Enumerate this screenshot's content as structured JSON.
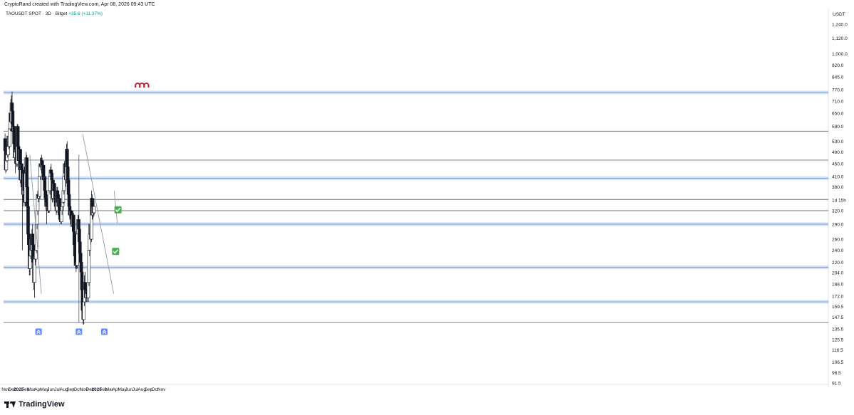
{
  "header": {
    "attribution": "CryptoRand created with TradingView.com, Apr 08, 2026 09:43 UTC"
  },
  "legend": {
    "symbol": "TAOUSDT SPOT · 3D · Bitget",
    "change": "+35.6 (+11.37%)"
  },
  "brand": {
    "name": "TradingView",
    "icon": "tradingview-logo-icon"
  },
  "chart_data": {
    "type": "candlestick",
    "y_scale": "log",
    "ylim": [
      91.5,
      1240.0
    ],
    "y_axis_unit": "USDT",
    "y_ticks": [
      "1,240.0",
      "1,120.0",
      "1,000.0",
      "920.0",
      "845.0",
      "770.0",
      "710.0",
      "650.0",
      "590.0",
      "530.0",
      "490.0",
      "450.0",
      "410.0",
      "380.0",
      "320.0",
      "290.0",
      "260.0",
      "240.0",
      "220.0",
      "204.0",
      "188.0",
      "172.0",
      "159.5",
      "147.5",
      "135.5",
      "125.5",
      "116.5",
      "106.5",
      "98.5",
      "91.5"
    ],
    "price_badge": "1d 15h",
    "x_ticks": [
      {
        "label": "Nov",
        "date": "2024-11-01",
        "bold": false
      },
      {
        "label": "Dec",
        "date": "2024-12-01",
        "bold": false
      },
      {
        "label": "2025",
        "date": "2025-01-01",
        "bold": true
      },
      {
        "label": "Feb",
        "date": "2025-02-01",
        "bold": false
      },
      {
        "label": "Mar",
        "date": "2025-03-01",
        "bold": false
      },
      {
        "label": "Apr",
        "date": "2025-04-01",
        "bold": false
      },
      {
        "label": "May",
        "date": "2025-05-01",
        "bold": false
      },
      {
        "label": "Jun",
        "date": "2025-06-01",
        "bold": false
      },
      {
        "label": "Jul",
        "date": "2025-07-01",
        "bold": false
      },
      {
        "label": "Aug",
        "date": "2025-08-01",
        "bold": false
      },
      {
        "label": "Sep",
        "date": "2025-09-01",
        "bold": false
      },
      {
        "label": "Oct",
        "date": "2025-10-01",
        "bold": false
      },
      {
        "label": "Nov",
        "date": "2025-11-01",
        "bold": false
      },
      {
        "label": "Dec",
        "date": "2025-12-01",
        "bold": false
      },
      {
        "label": "2026",
        "date": "2026-01-01",
        "bold": true
      },
      {
        "label": "Feb",
        "date": "2026-02-01",
        "bold": false
      },
      {
        "label": "Mar",
        "date": "2026-03-01",
        "bold": false
      },
      {
        "label": "Apr",
        "date": "2026-04-01",
        "bold": false
      },
      {
        "label": "May",
        "date": "2026-05-01",
        "bold": false
      },
      {
        "label": "Jun",
        "date": "2026-06-01",
        "bold": false
      },
      {
        "label": "Jul",
        "date": "2026-07-01",
        "bold": false
      },
      {
        "label": "Aug",
        "date": "2026-08-01",
        "bold": false
      },
      {
        "label": "Sep",
        "date": "2026-09-01",
        "bold": false
      },
      {
        "label": "Oct",
        "date": "2026-10-01",
        "bold": false
      },
      {
        "label": "Nov",
        "date": "2026-11-01",
        "bold": false
      }
    ],
    "support_resistance_bands": [
      755,
      405,
      290,
      212,
      165
    ],
    "horizontal_lines": [
      570,
      462,
      347,
      320,
      142
    ],
    "trendlines": [
      {
        "from": {
          "date": "2025-02-22",
          "price": 480
        },
        "to": {
          "date": "2025-04-17",
          "price": 175
        }
      },
      {
        "from": {
          "date": "2025-10-28",
          "price": 558
        },
        "to": {
          "date": "2026-03-22",
          "price": 175
        }
      },
      {
        "from": {
          "date": "2026-03-24",
          "price": 370
        },
        "to": {
          "date": "2026-04-08",
          "price": 292
        }
      }
    ],
    "event_vlines": [
      {
        "date": "2025-10-10",
        "from": 142,
        "to": 480
      }
    ],
    "event_markers": [
      {
        "date": "2025-04-04",
        "icon": "double-chevron-up-icon"
      },
      {
        "date": "2025-10-10",
        "icon": "double-chevron-up-icon"
      },
      {
        "date": "2026-02-06",
        "icon": "double-chevron-up-icon"
      }
    ],
    "check_markers": [
      {
        "date": "2026-04-11",
        "price": 322,
        "icon": "green-check-icon"
      },
      {
        "date": "2026-03-31",
        "price": 238,
        "icon": "green-check-icon"
      }
    ],
    "magnet_markers": [
      {
        "date": "2026-07-12",
        "price": 795,
        "icon": "magnet-icon"
      },
      {
        "date": "2026-08-01",
        "price": 795,
        "icon": "magnet-icon"
      },
      {
        "date": "2026-08-22",
        "price": 795,
        "icon": "magnet-icon"
      }
    ],
    "candle_step_days": 3,
    "candles_start": "2024-10-29",
    "candles": [
      [
        540,
        560,
        480,
        495
      ],
      [
        495,
        500,
        420,
        430
      ],
      [
        430,
        470,
        425,
        460
      ],
      [
        460,
        520,
        455,
        510
      ],
      [
        510,
        530,
        470,
        480
      ],
      [
        480,
        560,
        475,
        550
      ],
      [
        550,
        570,
        500,
        510
      ],
      [
        510,
        590,
        505,
        580
      ],
      [
        580,
        680,
        570,
        650
      ],
      [
        650,
        720,
        600,
        610
      ],
      [
        610,
        740,
        600,
        700
      ],
      [
        700,
        760,
        640,
        660
      ],
      [
        660,
        700,
        560,
        570
      ],
      [
        570,
        610,
        520,
        590
      ],
      [
        590,
        600,
        500,
        520
      ],
      [
        520,
        560,
        450,
        470
      ],
      [
        470,
        500,
        420,
        490
      ],
      [
        490,
        540,
        480,
        500
      ],
      [
        500,
        520,
        440,
        450
      ],
      [
        450,
        600,
        440,
        590
      ],
      [
        590,
        600,
        500,
        510
      ],
      [
        510,
        520,
        450,
        460
      ],
      [
        460,
        530,
        455,
        500
      ],
      [
        500,
        510,
        420,
        430
      ],
      [
        430,
        460,
        390,
        400
      ],
      [
        400,
        470,
        380,
        450
      ],
      [
        450,
        500,
        420,
        430
      ],
      [
        430,
        440,
        240,
        380
      ],
      [
        380,
        410,
        330,
        360
      ],
      [
        360,
        430,
        350,
        420
      ],
      [
        420,
        440,
        360,
        370
      ],
      [
        370,
        380,
        330,
        340
      ],
      [
        340,
        430,
        330,
        420
      ],
      [
        420,
        490,
        400,
        470
      ],
      [
        470,
        480,
        370,
        380
      ],
      [
        380,
        390,
        320,
        330
      ],
      [
        330,
        340,
        260,
        270
      ],
      [
        270,
        300,
        240,
        250
      ],
      [
        250,
        260,
        200,
        210
      ],
      [
        210,
        240,
        200,
        230
      ],
      [
        230,
        270,
        225,
        260
      ],
      [
        260,
        270,
        230,
        240
      ],
      [
        240,
        280,
        235,
        270
      ],
      [
        270,
        290,
        240,
        250
      ],
      [
        250,
        260,
        200,
        220
      ],
      [
        220,
        230,
        180,
        190
      ],
      [
        190,
        240,
        170,
        230
      ],
      [
        230,
        250,
        215,
        225
      ],
      [
        225,
        245,
        220,
        240
      ],
      [
        240,
        300,
        235,
        290
      ],
      [
        290,
        330,
        280,
        320
      ],
      [
        320,
        370,
        310,
        360
      ],
      [
        360,
        370,
        340,
        350
      ],
      [
        350,
        360,
        340,
        355
      ],
      [
        355,
        420,
        350,
        410
      ],
      [
        410,
        470,
        400,
        450
      ],
      [
        450,
        470,
        430,
        440
      ],
      [
        440,
        480,
        420,
        460
      ],
      [
        460,
        470,
        420,
        430
      ],
      [
        430,
        460,
        420,
        445
      ],
      [
        445,
        450,
        390,
        400
      ],
      [
        400,
        420,
        380,
        410
      ],
      [
        410,
        430,
        360,
        370
      ],
      [
        370,
        380,
        340,
        350
      ],
      [
        350,
        360,
        320,
        330
      ],
      [
        330,
        345,
        290,
        340
      ],
      [
        340,
        360,
        320,
        325
      ],
      [
        325,
        340,
        315,
        330
      ],
      [
        330,
        340,
        315,
        320
      ],
      [
        320,
        380,
        315,
        370
      ],
      [
        370,
        420,
        360,
        410
      ],
      [
        410,
        440,
        400,
        430
      ],
      [
        430,
        450,
        410,
        420
      ],
      [
        420,
        430,
        390,
        400
      ],
      [
        400,
        410,
        340,
        350
      ],
      [
        350,
        380,
        340,
        370
      ],
      [
        370,
        400,
        360,
        390
      ],
      [
        390,
        400,
        360,
        370
      ],
      [
        370,
        380,
        340,
        350
      ],
      [
        350,
        360,
        320,
        330
      ],
      [
        330,
        340,
        310,
        320
      ],
      [
        320,
        380,
        315,
        370
      ],
      [
        370,
        380,
        330,
        340
      ],
      [
        340,
        350,
        320,
        330
      ],
      [
        330,
        360,
        325,
        350
      ],
      [
        350,
        360,
        300,
        310
      ],
      [
        310,
        320,
        295,
        300
      ],
      [
        300,
        310,
        290,
        295
      ],
      [
        295,
        330,
        290,
        320
      ],
      [
        320,
        340,
        310,
        330
      ],
      [
        330,
        345,
        320,
        340
      ],
      [
        340,
        380,
        335,
        370
      ],
      [
        370,
        420,
        360,
        410
      ],
      [
        410,
        460,
        400,
        450
      ],
      [
        450,
        480,
        400,
        420
      ],
      [
        420,
        440,
        380,
        400
      ],
      [
        400,
        520,
        390,
        500
      ],
      [
        500,
        530,
        430,
        440
      ],
      [
        440,
        450,
        390,
        400
      ],
      [
        400,
        410,
        350,
        360
      ],
      [
        360,
        370,
        320,
        330
      ],
      [
        330,
        340,
        300,
        310
      ],
      [
        310,
        330,
        290,
        320
      ],
      [
        320,
        330,
        300,
        305
      ],
      [
        305,
        320,
        290,
        300
      ],
      [
        300,
        310,
        280,
        285
      ],
      [
        285,
        320,
        280,
        310
      ],
      [
        310,
        315,
        270,
        275
      ],
      [
        275,
        280,
        240,
        250
      ],
      [
        250,
        260,
        225,
        230
      ],
      [
        230,
        240,
        210,
        215
      ],
      [
        215,
        225,
        205,
        220
      ],
      [
        220,
        230,
        210,
        215
      ],
      [
        215,
        280,
        210,
        270
      ],
      [
        270,
        310,
        260,
        300
      ],
      [
        300,
        310,
        270,
        280
      ],
      [
        280,
        290,
        250,
        255
      ],
      [
        255,
        260,
        230,
        235
      ],
      [
        235,
        240,
        215,
        220
      ],
      [
        220,
        225,
        200,
        205
      ],
      [
        205,
        210,
        175,
        180
      ],
      [
        180,
        185,
        150,
        155
      ],
      [
        155,
        165,
        140,
        145
      ],
      [
        145,
        170,
        140,
        165
      ],
      [
        165,
        200,
        160,
        190
      ],
      [
        190,
        205,
        175,
        180
      ],
      [
        180,
        190,
        165,
        170
      ],
      [
        170,
        185,
        165,
        180
      ],
      [
        180,
        190,
        170,
        175
      ],
      [
        175,
        185,
        165,
        170
      ],
      [
        170,
        200,
        165,
        190
      ],
      [
        190,
        245,
        185,
        240
      ],
      [
        240,
        280,
        230,
        270
      ],
      [
        270,
        300,
        260,
        290
      ],
      [
        290,
        285,
        250,
        260
      ],
      [
        260,
        370,
        255,
        350
      ],
      [
        350,
        360,
        300,
        310
      ],
      [
        310,
        340,
        300,
        330
      ],
      [
        330,
        345,
        305,
        315
      ],
      [
        315,
        350,
        310,
        330
      ]
    ]
  }
}
